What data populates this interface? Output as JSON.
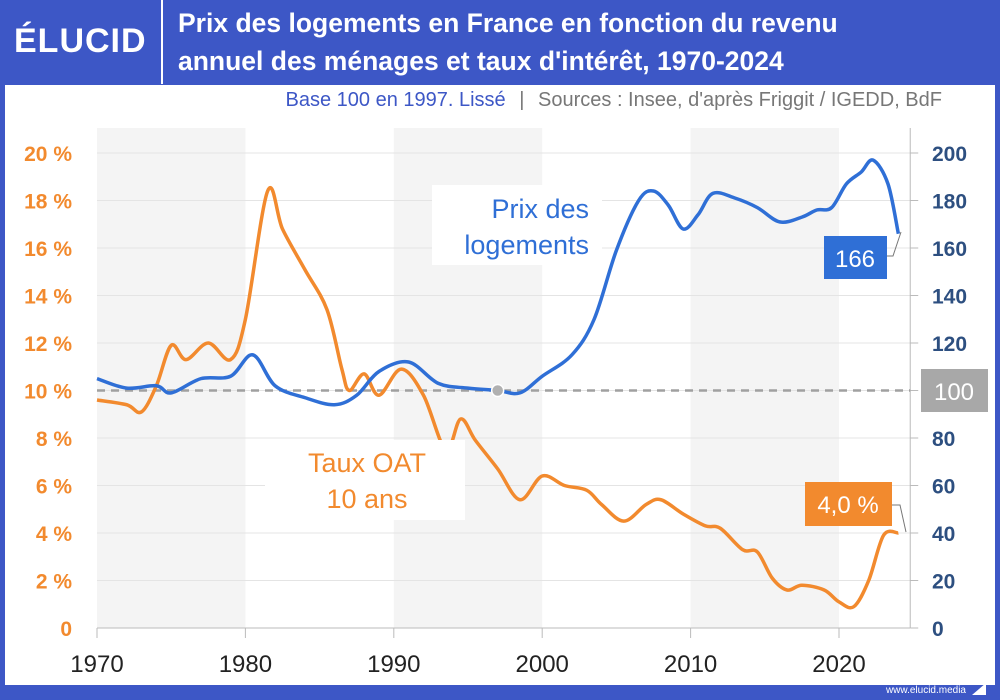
{
  "header": {
    "logo": "ÉLUCID",
    "title_line1": "Prix des logements en France en fonction du revenu",
    "title_line2": "annuel des ménages et taux d'intérêt, 1970-2024",
    "subtitle": "Base 100 en 1997. Lissé",
    "separator": "|",
    "sources": "Sources : Insee, d'après Friggit / IGEDD, BdF"
  },
  "footer": {
    "url": "www.elucid.media"
  },
  "colors": {
    "background": "#3d57c6",
    "price": "#2f6fd6",
    "rate": "#f28a2e",
    "right_axis": "#2d4f80",
    "base_line": "#a0a0a0"
  },
  "chart_data": {
    "type": "line",
    "title": "Prix des logements en France en fonction du revenu annuel des ménages et taux d'intérêt, 1970-2024",
    "xlim": [
      1970,
      2024.8
    ],
    "x_ticks": [
      "1970",
      "1980",
      "1990",
      "2000",
      "2010",
      "2020"
    ],
    "y_left": {
      "lim": [
        0,
        20
      ],
      "ticks": [
        "0",
        "2 %",
        "4 %",
        "6 %",
        "8 %",
        "10 %",
        "12 %",
        "14 %",
        "16 %",
        "18 %",
        "20 %"
      ]
    },
    "y_right": {
      "lim": [
        0,
        200
      ],
      "ticks": [
        "0",
        "20",
        "40",
        "60",
        "80",
        "100",
        "120",
        "140",
        "160",
        "180",
        "200"
      ]
    },
    "grid": true,
    "shaded_decades": [
      [
        1970,
        1980
      ],
      [
        1990,
        2000
      ],
      [
        2010,
        2020
      ]
    ],
    "base_line": {
      "value": 100,
      "label": "100",
      "marker_year": 1997
    },
    "series": [
      {
        "name": "Prix des logements",
        "axis": "right",
        "end_label": "166",
        "points": [
          [
            1970,
            105
          ],
          [
            1972,
            101
          ],
          [
            1974,
            102
          ],
          [
            1975,
            99
          ],
          [
            1977,
            105
          ],
          [
            1979,
            106
          ],
          [
            1980.5,
            115
          ],
          [
            1982,
            102
          ],
          [
            1984,
            97
          ],
          [
            1986,
            94
          ],
          [
            1987.5,
            98
          ],
          [
            1989,
            108
          ],
          [
            1991,
            112
          ],
          [
            1993,
            103
          ],
          [
            1995,
            101
          ],
          [
            1997,
            100
          ],
          [
            1998.5,
            99
          ],
          [
            2000,
            106
          ],
          [
            2002,
            115
          ],
          [
            2003.5,
            130
          ],
          [
            2005,
            159
          ],
          [
            2006.5,
            180
          ],
          [
            2007.5,
            184
          ],
          [
            2008.5,
            178
          ],
          [
            2009.5,
            168
          ],
          [
            2010.5,
            174
          ],
          [
            2011.5,
            183
          ],
          [
            2013,
            181
          ],
          [
            2014.5,
            177
          ],
          [
            2016,
            171
          ],
          [
            2017.5,
            173
          ],
          [
            2018.5,
            176
          ],
          [
            2019.5,
            177
          ],
          [
            2020.5,
            187
          ],
          [
            2021.5,
            192
          ],
          [
            2022.3,
            197
          ],
          [
            2023.3,
            187
          ],
          [
            2024,
            166
          ]
        ]
      },
      {
        "name": "Taux OAT 10 ans",
        "axis": "left",
        "end_label": "4,0 %",
        "points": [
          [
            1970,
            9.6
          ],
          [
            1972,
            9.4
          ],
          [
            1973,
            9.1
          ],
          [
            1974,
            10.2
          ],
          [
            1975,
            11.9
          ],
          [
            1976,
            11.3
          ],
          [
            1977.5,
            12.0
          ],
          [
            1979,
            11.3
          ],
          [
            1980,
            13.0
          ],
          [
            1981.5,
            18.4
          ],
          [
            1982.5,
            16.8
          ],
          [
            1984,
            15.1
          ],
          [
            1985.5,
            13.4
          ],
          [
            1986.5,
            10.9
          ],
          [
            1987,
            10.0
          ],
          [
            1988,
            10.7
          ],
          [
            1989,
            9.8
          ],
          [
            1990.5,
            10.9
          ],
          [
            1992,
            9.8
          ],
          [
            1993.5,
            7.5
          ],
          [
            1994.5,
            8.8
          ],
          [
            1995.5,
            7.9
          ],
          [
            1997,
            6.7
          ],
          [
            1998.5,
            5.4
          ],
          [
            2000,
            6.4
          ],
          [
            2001.5,
            6.0
          ],
          [
            2003,
            5.8
          ],
          [
            2004,
            5.2
          ],
          [
            2005.5,
            4.5
          ],
          [
            2007,
            5.2
          ],
          [
            2008,
            5.4
          ],
          [
            2009.5,
            4.8
          ],
          [
            2011,
            4.3
          ],
          [
            2012,
            4.2
          ],
          [
            2013.5,
            3.3
          ],
          [
            2014.5,
            3.2
          ],
          [
            2015.5,
            2.1
          ],
          [
            2016.5,
            1.6
          ],
          [
            2017.5,
            1.8
          ],
          [
            2019,
            1.6
          ],
          [
            2020,
            1.1
          ],
          [
            2021,
            0.9
          ],
          [
            2022,
            2.0
          ],
          [
            2023,
            3.9
          ],
          [
            2024,
            4.0
          ]
        ]
      }
    ],
    "annotations": {
      "price_label": [
        "Prix des",
        "logements"
      ],
      "rate_label": [
        "Taux OAT",
        "10 ans"
      ]
    }
  }
}
